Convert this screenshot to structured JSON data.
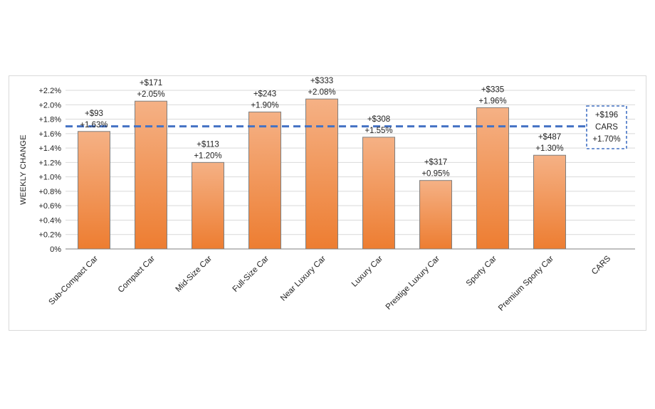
{
  "chart_data": {
    "type": "bar",
    "title": "",
    "xlabel": "",
    "ylabel": "WEEKLY CHANGE",
    "ylim": [
      0,
      2.2
    ],
    "yticks": [
      "0%",
      "+0.2%",
      "+0.4%",
      "+0.6%",
      "+0.8%",
      "+1.0%",
      "+1.2%",
      "+1.4%",
      "+1.6%",
      "+1.8%",
      "+2.0%",
      "+2.2%"
    ],
    "categories": [
      "Sub-Compact Car",
      "Compact Car",
      "Mid-Size Car",
      "Full-Size Car",
      "Near Luxury Car",
      "Luxury Car",
      "Prestige Luxury Car",
      "Sporty Car",
      "Premium Sporty Car",
      "CARS"
    ],
    "values": [
      1.63,
      2.05,
      1.2,
      1.9,
      2.08,
      1.55,
      0.95,
      1.96,
      1.3,
      null
    ],
    "data_labels": [
      [
        "+$93",
        "+1.63%"
      ],
      [
        "+$171",
        "+2.05%"
      ],
      [
        "+$113",
        "+1.20%"
      ],
      [
        "+$243",
        "+1.90%"
      ],
      [
        "+$333",
        "+2.08%"
      ],
      [
        "+$308",
        "+1.55%"
      ],
      [
        "+$317",
        "+0.95%"
      ],
      [
        "+$335",
        "+1.96%"
      ],
      [
        "+$487",
        "+1.30%"
      ],
      [
        "+$196",
        "CARS",
        "+1.70%"
      ]
    ],
    "reference_line": {
      "name": "CARS",
      "value": 1.7,
      "style": "dashed"
    },
    "colors": {
      "bar_top": "#f5b185",
      "bar_bottom": "#ed7d31",
      "bar_stroke": "#7f7f7f",
      "reference_line": "#4472c4",
      "grid": "#d9d9d9"
    },
    "grid": true
  }
}
